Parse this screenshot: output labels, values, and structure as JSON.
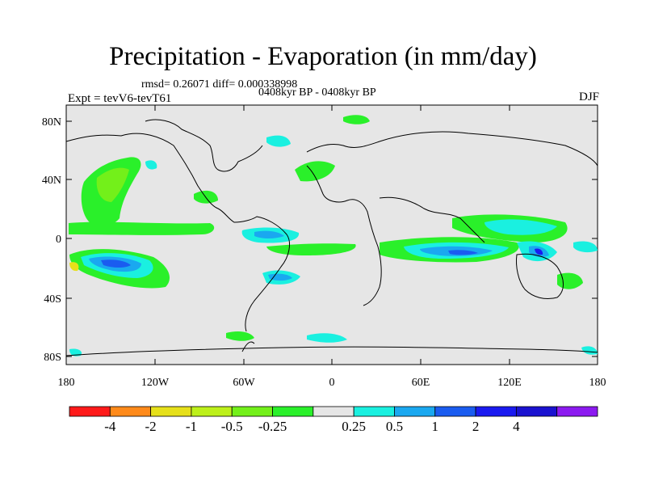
{
  "title": "Precipitation - Evaporation (in mm/day)",
  "stats_line": "rmsd= 0.26071  diff= 0.000338998",
  "period_line": "0408kyr BP - 0408kyr BP",
  "experiment_label": "Expt = tevV6-tevT61",
  "season_label": "DJF",
  "lat_ticks": [
    "80N",
    "40N",
    "0",
    "40S",
    "80S"
  ],
  "lon_ticks": [
    "180",
    "120W",
    "60W",
    "0",
    "60E",
    "120E",
    "180"
  ],
  "colorbar": {
    "colors": [
      "#ff1a1a",
      "#ff8a1a",
      "#e6e01a",
      "#bdf01a",
      "#73f01a",
      "#2af02a",
      "#e6e6e6",
      "#1af0e0",
      "#1aa8f0",
      "#1a5cf0",
      "#1a1af0",
      "#1a12d0",
      "#8c1af0"
    ],
    "labels": [
      "-4",
      "-2",
      "-1",
      "-0.5",
      "-0.25",
      "0.25",
      "0.5",
      "1",
      "2",
      "4"
    ]
  },
  "ocean_color": "#e6e6e6"
}
